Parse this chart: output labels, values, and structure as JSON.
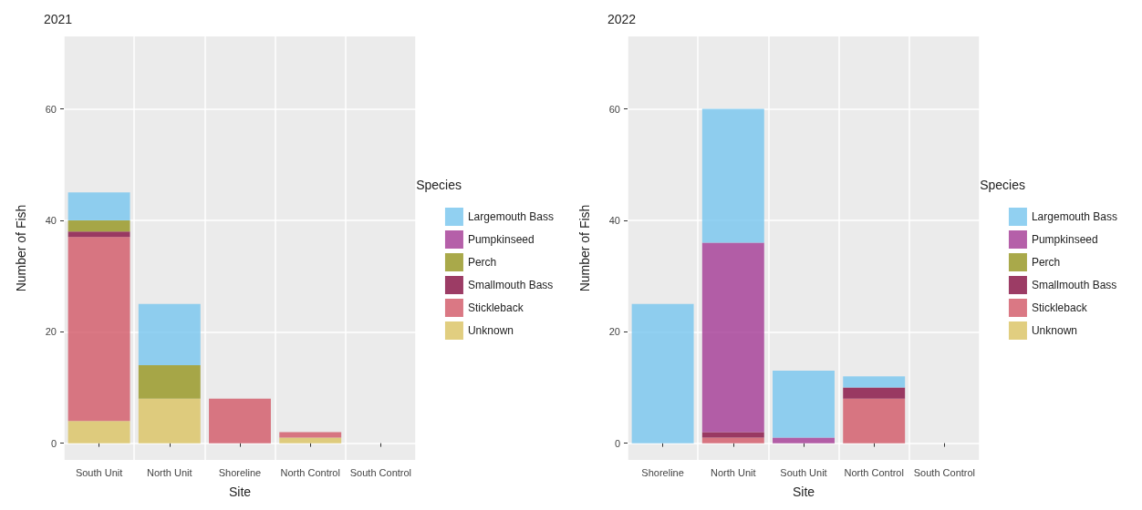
{
  "chart_data": [
    {
      "type": "bar",
      "title": "2021",
      "xlabel": "Site",
      "ylabel": "Number of Fish",
      "legend_title": "Species",
      "categories": [
        "South Unit",
        "North Unit",
        "Shoreline",
        "North Control",
        "South Control"
      ],
      "stacked": true,
      "ylim": [
        -3,
        73
      ],
      "yticks": [
        0,
        20,
        40,
        60
      ],
      "grid": true,
      "legend": "right",
      "series": [
        {
          "name": "Unknown",
          "color": "#dcc66a",
          "values": [
            4,
            8,
            null,
            1,
            null
          ]
        },
        {
          "name": "Stickleback",
          "color": "#d4606e",
          "values": [
            33,
            null,
            8,
            1,
            null
          ]
        },
        {
          "name": "Smallmouth Bass",
          "color": "#8b1a4a",
          "values": [
            1,
            null,
            null,
            null,
            null
          ]
        },
        {
          "name": "Perch",
          "color": "#9a9a2a",
          "values": [
            2,
            6,
            null,
            null,
            null
          ]
        },
        {
          "name": "Pumpkinseed",
          "color": "#a8449a",
          "values": [
            null,
            null,
            null,
            null,
            null
          ]
        },
        {
          "name": "Largemouth Bass",
          "color": "#7ec8ee",
          "values": [
            5,
            11,
            null,
            null,
            null
          ]
        }
      ]
    },
    {
      "type": "bar",
      "title": "2022",
      "xlabel": "Site",
      "ylabel": "Number of Fish",
      "legend_title": "Species",
      "categories": [
        "Shoreline",
        "North Unit",
        "South Unit",
        "North Control",
        "South Control"
      ],
      "stacked": true,
      "ylim": [
        -3,
        73
      ],
      "yticks": [
        0,
        20,
        40,
        60
      ],
      "grid": true,
      "legend": "right",
      "series": [
        {
          "name": "Unknown",
          "color": "#dcc66a",
          "values": [
            null,
            null,
            null,
            null,
            null
          ]
        },
        {
          "name": "Stickleback",
          "color": "#d4606e",
          "values": [
            null,
            1,
            null,
            8,
            null
          ]
        },
        {
          "name": "Smallmouth Bass",
          "color": "#8b1a4a",
          "values": [
            null,
            1,
            null,
            2,
            null
          ]
        },
        {
          "name": "Perch",
          "color": "#9a9a2a",
          "values": [
            null,
            null,
            null,
            null,
            null
          ]
        },
        {
          "name": "Pumpkinseed",
          "color": "#a8449a",
          "values": [
            null,
            34,
            1,
            null,
            null
          ]
        },
        {
          "name": "Largemouth Bass",
          "color": "#7ec8ee",
          "values": [
            25,
            24,
            12,
            2,
            null
          ]
        }
      ]
    }
  ]
}
